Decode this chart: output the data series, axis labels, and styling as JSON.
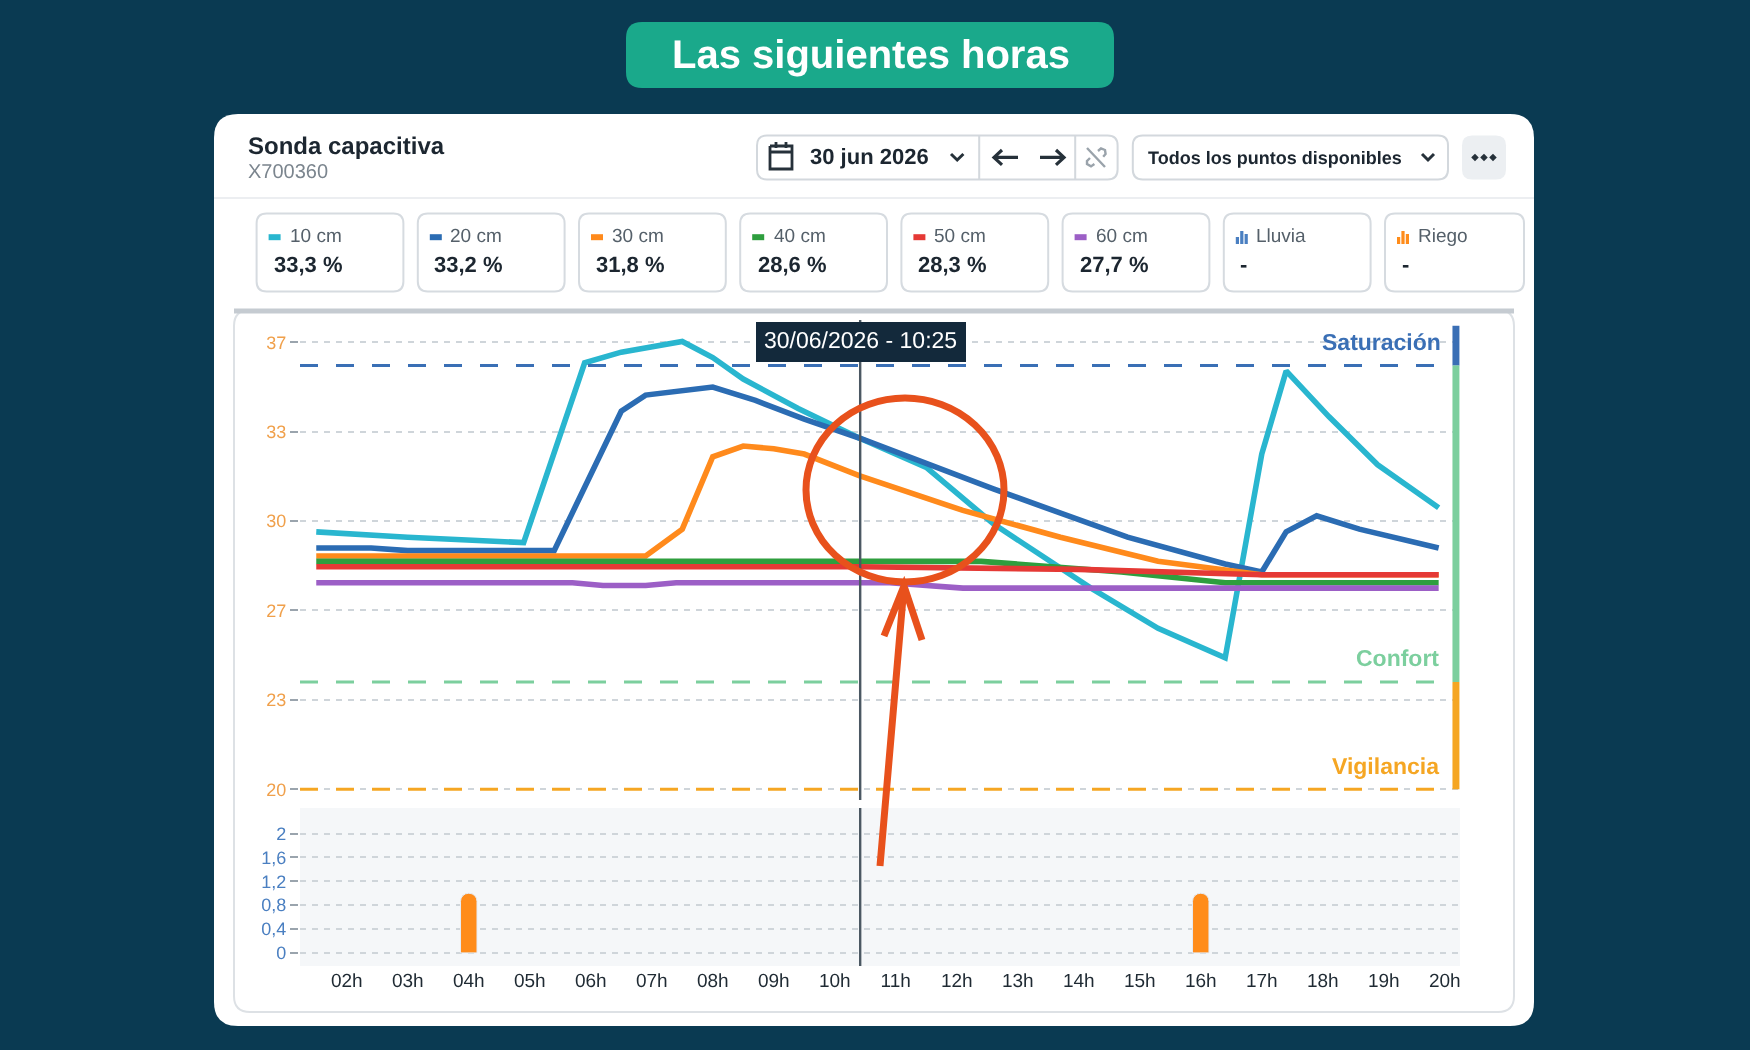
{
  "chart_data": [
    {
      "type": "line",
      "title": "Las siguientes horas",
      "subtitle": "Sonda capacitiva",
      "annotations": [
        "X700360",
        "30 jun 2026",
        "Todos los puntos disponibles",
        "33,3 %",
        "33,2 %",
        "31,8 %",
        "28,6 %",
        "28,3 %",
        "27,7 %"
      ],
      "legend": "top",
      "xlim": [
        "2026-06-30T01:14",
        "2026-06-30T20:15"
      ],
      "ylim": [
        19.6,
        37.5
      ],
      "yticks": [
        20,
        {
          "value": 23.33,
          "label": "23"
        },
        {
          "value": 26.67,
          "label": "27"
        },
        30,
        {
          "value": 33.33,
          "label": "33"
        },
        {
          "value": 36.67,
          "label": "37"
        }
      ],
      "tick_labels": "y",
      "grid": "y",
      "series": [
        {
          "name": "10 cm",
          "color": "#29b6cf",
          "x": [
            "2026-06-30T01:30",
            "2026-06-30T03:00",
            "2026-06-30T04:54",
            "2026-06-30T05:54",
            "2026-06-30T06:30",
            "2026-06-30T07:30",
            "2026-06-30T08:00",
            "2026-06-30T08:30",
            "2026-06-30T09:24",
            "2026-06-30T10:24",
            "2026-06-30T11:30",
            "2026-06-30T12:36",
            "2026-06-30T14:12",
            "2026-06-30T15:18",
            "2026-06-30T16:24",
            "2026-06-30T17:00",
            "2026-06-30T17:24",
            "2026-06-30T18:06",
            "2026-06-30T18:54",
            "2026-06-30T19:54"
          ],
          "values": [
            29.6,
            29.4,
            29.2,
            35.9,
            36.3,
            36.7,
            36.1,
            35.3,
            34.2,
            33.1,
            32.0,
            29.9,
            27.5,
            26.0,
            24.9,
            32.5,
            35.6,
            33.9,
            32.1,
            30.5
          ]
        },
        {
          "name": "20 cm",
          "color": "#2b6cb3",
          "x": [
            "2026-06-30T01:30",
            "2026-06-30T02:24",
            "2026-06-30T03:00",
            "2026-06-30T05:24",
            "2026-06-30T06:30",
            "2026-06-30T06:54",
            "2026-06-30T08:00",
            "2026-06-30T08:42",
            "2026-06-30T09:30",
            "2026-06-30T10:24",
            "2026-06-30T12:36",
            "2026-06-30T14:48",
            "2026-06-30T16:24",
            "2026-06-30T17:00",
            "2026-06-30T17:24",
            "2026-06-30T17:54",
            "2026-06-30T18:36",
            "2026-06-30T19:54"
          ],
          "values": [
            29.0,
            29.0,
            28.9,
            28.9,
            34.1,
            34.7,
            35.0,
            34.5,
            33.8,
            33.1,
            31.2,
            29.4,
            28.4,
            28.1,
            29.6,
            30.2,
            29.7,
            29.0
          ]
        },
        {
          "name": "30 cm",
          "color": "#ff8a1c",
          "x": [
            "2026-06-30T01:30",
            "2026-06-30T06:54",
            "2026-06-30T07:30",
            "2026-06-30T08:00",
            "2026-06-30T08:30",
            "2026-06-30T09:00",
            "2026-06-30T09:30",
            "2026-06-30T10:24",
            "2026-06-30T12:06",
            "2026-06-30T13:42",
            "2026-06-30T15:18",
            "2026-06-30T17:00",
            "2026-06-30T19:54"
          ],
          "values": [
            28.7,
            28.7,
            29.7,
            32.4,
            32.8,
            32.7,
            32.5,
            31.7,
            30.4,
            29.4,
            28.5,
            28.0,
            28.0
          ]
        },
        {
          "name": "40 cm",
          "color": "#2e9e3e",
          "x": [
            "2026-06-30T01:30",
            "2026-06-30T12:24",
            "2026-06-30T14:42",
            "2026-06-30T16:24",
            "2026-06-30T19:54"
          ],
          "values": [
            28.5,
            28.5,
            28.1,
            27.7,
            27.7
          ]
        },
        {
          "name": "50 cm",
          "color": "#e53935",
          "x": [
            "2026-06-30T01:30",
            "2026-06-30T10:24",
            "2026-06-30T14:00",
            "2026-06-30T17:00",
            "2026-06-30T19:54"
          ],
          "values": [
            28.3,
            28.3,
            28.2,
            28.0,
            28.0
          ]
        },
        {
          "name": "60 cm",
          "color": "#9c5fc6",
          "x": [
            "2026-06-30T01:30",
            "2026-06-30T05:42",
            "2026-06-30T06:12",
            "2026-06-30T06:54",
            "2026-06-30T07:24",
            "2026-06-30T10:54",
            "2026-06-30T12:06",
            "2026-06-30T19:54"
          ],
          "values": [
            27.7,
            27.7,
            27.6,
            27.6,
            27.7,
            27.7,
            27.5,
            27.5
          ]
        }
      ],
      "ref_lines": [
        {
          "axis": "y",
          "value": 35.8,
          "label": "Saturación",
          "color": "#3a6fb5",
          "line_style": "dashed"
        },
        {
          "axis": "y",
          "value": 24.0,
          "label": "Confort",
          "color": "#7ccf9e",
          "line_style": "dashed"
        },
        {
          "axis": "y",
          "value": 20,
          "label": "Vigilancia",
          "color": "#f5a623",
          "line_style": "dashed"
        },
        {
          "axis": "x",
          "value": "2026-06-30T10:25",
          "label": "30/06/2026 - 10:25",
          "color": "#4b5863"
        }
      ]
    },
    {
      "type": "bar",
      "x": [
        "2026-06-30T04:00",
        "2026-06-30T16:00"
      ],
      "legend": "top",
      "annotations": [
        "-",
        "-"
      ],
      "series": [
        {
          "name": "Lluvia",
          "color": "#4a7fc1",
          "values": [
            null,
            null
          ]
        },
        {
          "name": "Riego",
          "color": "#ff8c1a",
          "values": [
            1.0,
            1.0
          ]
        }
      ],
      "xlim": [
        "2026-06-30T01:14",
        "2026-06-30T20:15"
      ],
      "xticks": [
        {
          "value": "2026-06-30T02:00",
          "label": "02h"
        },
        {
          "value": "2026-06-30T03:00",
          "label": "03h"
        },
        {
          "value": "2026-06-30T04:00",
          "label": "04h"
        },
        {
          "value": "2026-06-30T05:00",
          "label": "05h"
        },
        {
          "value": "2026-06-30T06:00",
          "label": "06h"
        },
        {
          "value": "2026-06-30T07:00",
          "label": "07h"
        },
        {
          "value": "2026-06-30T08:00",
          "label": "08h"
        },
        {
          "value": "2026-06-30T09:00",
          "label": "09h"
        },
        {
          "value": "2026-06-30T10:00",
          "label": "10h"
        },
        {
          "value": "2026-06-30T11:00",
          "label": "11h"
        },
        {
          "value": "2026-06-30T12:00",
          "label": "12h"
        },
        {
          "value": "2026-06-30T13:00",
          "label": "13h"
        },
        {
          "value": "2026-06-30T14:00",
          "label": "14h"
        },
        {
          "value": "2026-06-30T15:00",
          "label": "15h"
        },
        {
          "value": "2026-06-30T16:00",
          "label": "16h"
        },
        {
          "value": "2026-06-30T17:00",
          "label": "17h"
        },
        {
          "value": "2026-06-30T18:00",
          "label": "18h"
        },
        {
          "value": "2026-06-30T19:00",
          "label": "19h"
        },
        {
          "value": "2026-06-30T20:00",
          "label": "20h"
        }
      ],
      "ylim": [
        -0.22,
        2.43
      ],
      "yticks": [
        0,
        {
          "value": 0.4,
          "label": "0,4"
        },
        {
          "value": 0.8,
          "label": "0,8"
        },
        {
          "value": 1.2,
          "label": "1,2"
        },
        {
          "value": 1.6,
          "label": "1,6"
        },
        2
      ],
      "grid": "y",
      "ref_lines": [
        {
          "axis": "x",
          "value": "2026-06-30T10:25",
          "color": "#4b5863"
        }
      ]
    }
  ]
}
